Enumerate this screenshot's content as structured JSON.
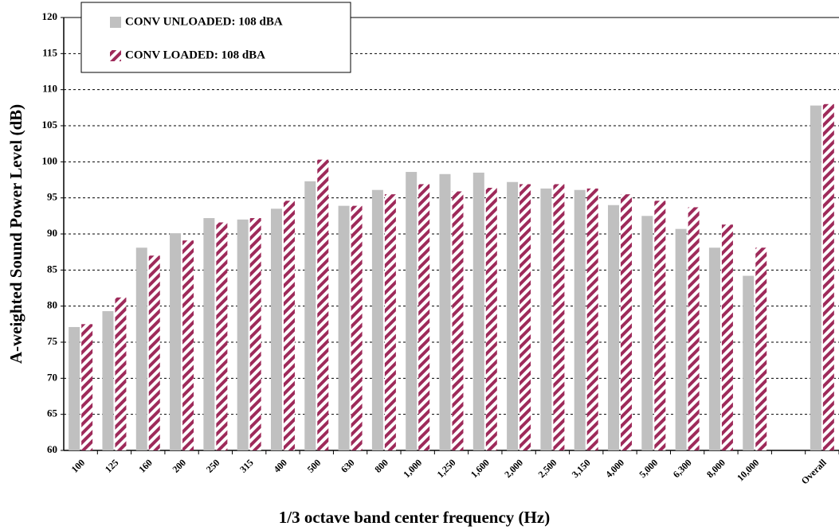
{
  "chart_data": {
    "type": "bar",
    "y_label": "A-weighted Sound Power Level (dB)",
    "x_label": "1/3 octave band center frequency (Hz)",
    "categories": [
      "100",
      "125",
      "160",
      "200",
      "250",
      "315",
      "400",
      "500",
      "630",
      "800",
      "1,000",
      "1,250",
      "1,600",
      "2,000",
      "2,500",
      "3,150",
      "4,000",
      "5,000",
      "6,300",
      "8,000",
      "10,000",
      null,
      "Overall"
    ],
    "series": [
      {
        "name": "CONV UNLOADED: 108 dBA",
        "color": "#c0c0c0",
        "pattern": "solid",
        "values": [
          77.1,
          79.3,
          88.1,
          90.1,
          92.2,
          92.0,
          93.5,
          97.3,
          93.9,
          96.1,
          98.6,
          98.3,
          98.5,
          97.2,
          96.3,
          96.1,
          94.0,
          92.5,
          90.7,
          88.1,
          84.2,
          null,
          107.8
        ]
      },
      {
        "name": "CONV LOADED: 108 dBA",
        "color": "#9e2a5a",
        "pattern": "hatch",
        "values": [
          77.5,
          81.2,
          87.0,
          89.1,
          91.6,
          92.2,
          94.6,
          100.3,
          93.9,
          95.5,
          96.9,
          95.9,
          96.4,
          96.9,
          96.9,
          96.3,
          95.5,
          94.6,
          93.7,
          91.3,
          88.1,
          null,
          108.0
        ]
      }
    ],
    "ylim": [
      60,
      120
    ],
    "yticks": [
      60,
      65,
      70,
      75,
      80,
      85,
      90,
      95,
      100,
      105,
      110,
      115,
      120
    ],
    "grid": true,
    "legend": "upper left"
  }
}
